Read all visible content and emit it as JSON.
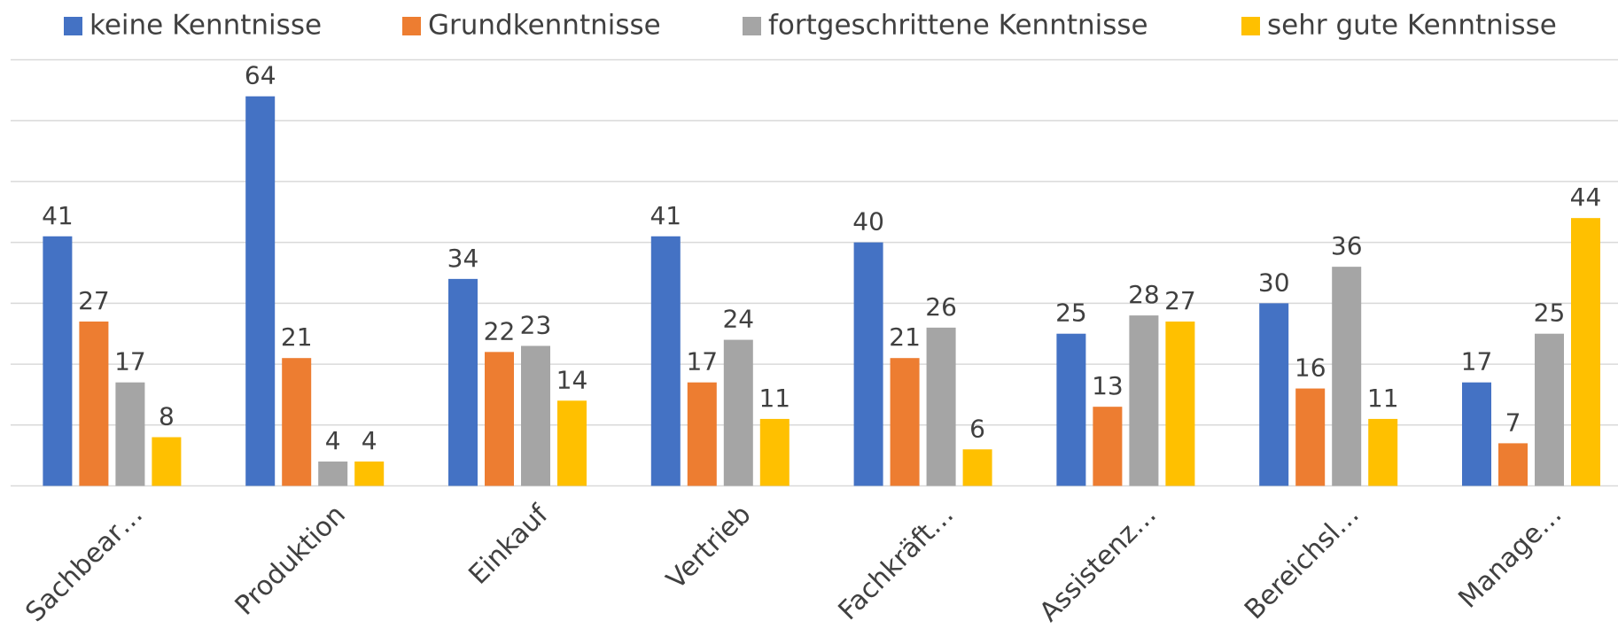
{
  "chart_data": {
    "type": "bar",
    "categories": [
      "Sachbear…",
      "Produktion",
      "Einkauf",
      "Vertrieb",
      "Fachkräft…",
      "Assistenz…",
      "Bereichsl…",
      "Manage…"
    ],
    "series": [
      {
        "name": "keine Kenntnisse",
        "color": "#4472c4",
        "values": [
          41,
          64,
          34,
          41,
          40,
          25,
          30,
          17
        ]
      },
      {
        "name": "Grundkenntnisse",
        "color": "#ed7d31",
        "values": [
          27,
          21,
          22,
          17,
          21,
          13,
          16,
          7
        ]
      },
      {
        "name": "fortgeschrittene Kenntnisse",
        "color": "#a5a5a5",
        "values": [
          17,
          4,
          23,
          24,
          26,
          28,
          36,
          25
        ]
      },
      {
        "name": "sehr gute Kenntnisse",
        "color": "#ffc000",
        "values": [
          8,
          4,
          14,
          11,
          6,
          27,
          11,
          44
        ]
      }
    ],
    "ylim": [
      0,
      70
    ],
    "yticks": [
      0,
      10,
      20,
      30,
      40,
      50,
      60,
      70
    ],
    "grid": true,
    "legend": "top"
  }
}
